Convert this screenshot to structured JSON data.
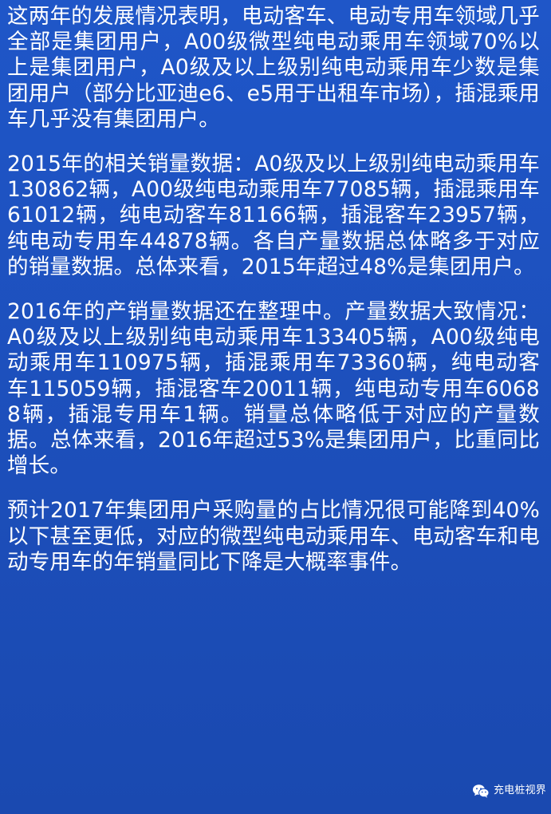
{
  "paragraphs": [
    "这两年的发展情况表明，电动客车、电动专用车领域几乎全部是集团用户，A00级微型纯电动乘用车领域70%以上是集团用户，A0级及以上级别纯电动乘用车少数是集团用户（部分比亚迪e6、e5用于出租车市场），插混乘用车几乎没有集团用户。",
    "2015年的相关销量数据：A0级及以上级别纯电动乘用车130862辆，A00级纯电动乘用车77085辆，插混乘用车61012辆，纯电动客车81166辆，插混客车23957辆，纯电动专用车44878辆。各自产量数据总体略多于对应的销量数据。总体来看，2015年超过48%是集团用户。",
    "2016年的产销量数据还在整理中。产量数据大致情况：A0级及以上级别纯电动乘用车133405辆，A00级纯电动乘用车110975辆，插混乘用车73360辆，纯电动客车115059辆，插混客车20011辆，纯电动专用车60688辆，插混专用车1辆。销量总体略低于对应的产量数据。总体来看，2016年超过53%是集团用户，比重同比增长。",
    "预计2017年集团用户采购量的占比情况很可能降到40%以下甚至更低，对应的微型纯电动乘用车、电动客车和电动专用车的年销量同比下降是大概率事件。"
  ],
  "watermark": {
    "icon": "wechat-icon",
    "text": "充电桩视界"
  },
  "colors": {
    "background": "#1d50bd",
    "text": "#ffffff"
  }
}
